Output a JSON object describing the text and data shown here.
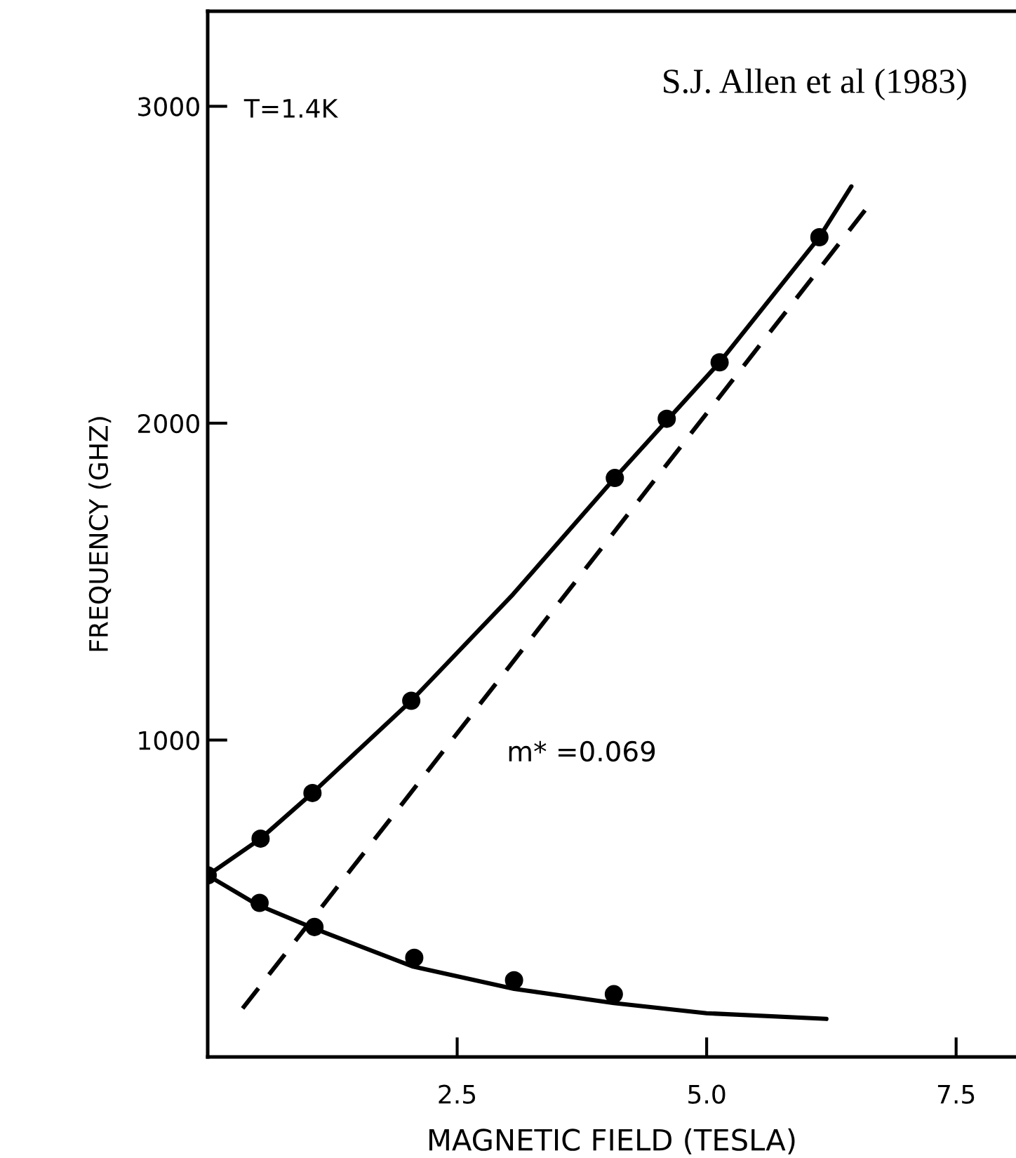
{
  "chart_data": {
    "type": "scatter",
    "xlabel": "MAGNETIC FIELD (TESLA)",
    "ylabel": "FREQUENCY (GHZ)",
    "annotations": [
      "T=1.4K",
      "S.J. Allen et al (1983)",
      "m* =0.069"
    ],
    "xlim": [
      0,
      8.1
    ],
    "ylim": [
      0,
      3300
    ],
    "xticks": [
      2.5,
      {
        "value": 5.0,
        "label": "5.0"
      },
      7.5
    ],
    "yticks": [
      1000,
      2000,
      3000
    ],
    "grid": false,
    "legend": false,
    "marker": "circle",
    "series": [
      {
        "color": "#000000",
        "x": [
          0,
          0.53,
          1.05,
          2.04,
          4.08,
          4.6,
          5.13,
          6.13
        ],
        "values": [
          573,
          689,
          833,
          1124,
          1827,
          2014,
          2192,
          2587
        ]
      },
      {
        "color": "#000000",
        "x": [
          0.52,
          1.07,
          2.07,
          3.07,
          4.07
        ],
        "values": [
          486,
          410,
          313,
          242,
          198
        ]
      },
      {
        "type": "line",
        "color": "#000000",
        "line_style": "solid",
        "marker": "none",
        "x": [
          0,
          0.53,
          1.05,
          2.04,
          3.06,
          4.08,
          5.13,
          6.13,
          6.45
        ],
        "values": [
          573,
          689,
          833,
          1124,
          1460,
          1827,
          2192,
          2587,
          2747
        ]
      },
      {
        "type": "line",
        "color": "#000000",
        "line_style": "solid",
        "marker": "none",
        "x": [
          0,
          0.5,
          1.07,
          2.06,
          3.07,
          4.07,
          5.0,
          6.2
        ],
        "values": [
          573,
          480,
          405,
          285,
          215,
          170,
          138,
          120
        ]
      },
      {
        "type": "line",
        "color": "#000000",
        "line_style": "dashed",
        "marker": "none",
        "x": [
          0.35,
          6.6
        ],
        "values": [
          153,
          2677
        ]
      }
    ]
  }
}
